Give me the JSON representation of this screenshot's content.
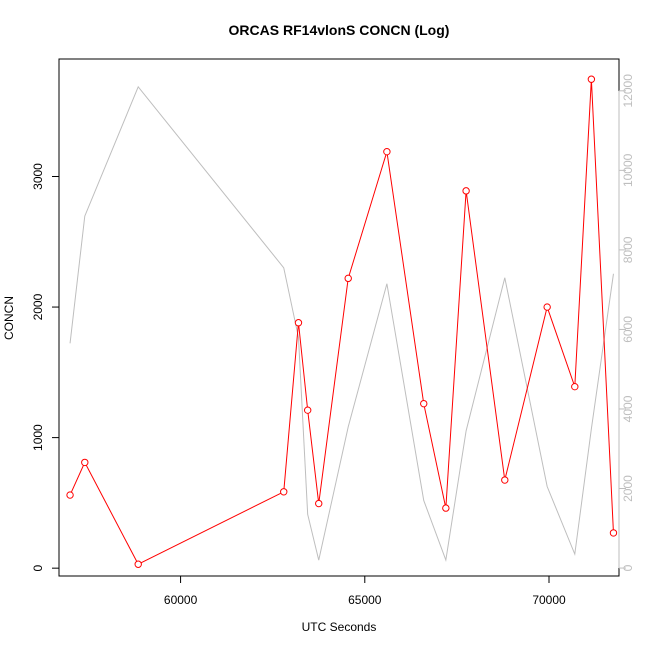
{
  "chart_data": {
    "type": "line",
    "title": "ORCAS RF14vlonS CONCN (Log)",
    "xlabel": "UTC Seconds",
    "ylabel": "CONCN",
    "x_ticks": [
      "60000",
      "65000",
      "70000"
    ],
    "y_ticks_left": [
      "0",
      "1000",
      "2000",
      "3000"
    ],
    "y_ticks_right": [
      "0",
      "2000",
      "4000",
      "6000",
      "8000",
      "10000",
      "12000"
    ],
    "xlim": [
      56700,
      71900
    ],
    "ylim_left": [
      -60,
      3900
    ],
    "ylim_right": [
      -200,
      12800
    ],
    "grid": false,
    "legend": "none",
    "series": [
      {
        "axis": "left",
        "color": "#ff0000",
        "markers": "open-circle",
        "x": [
          57000,
          57400,
          58850,
          62800,
          63200,
          63450,
          63750,
          64550,
          65600,
          66600,
          67200,
          67750,
          68800,
          69950,
          70700,
          71150,
          71750
        ],
        "y": [
          560,
          810,
          30,
          585,
          1880,
          1210,
          495,
          2220,
          3190,
          1260,
          460,
          2890,
          675,
          2000,
          1390,
          3745,
          270
        ]
      },
      {
        "axis": "right",
        "color": "#bebebe",
        "markers": "none",
        "x": [
          57000,
          57400,
          58850,
          62800,
          63200,
          63450,
          63750,
          64550,
          65600,
          66600,
          67200,
          67750,
          68800,
          69950,
          70700,
          71150,
          71750
        ],
        "y": [
          5650,
          8850,
          12100,
          7550,
          5800,
          1350,
          200,
          3550,
          7150,
          1700,
          200,
          3450,
          7300,
          2050,
          350,
          3500,
          7400
        ]
      }
    ]
  }
}
